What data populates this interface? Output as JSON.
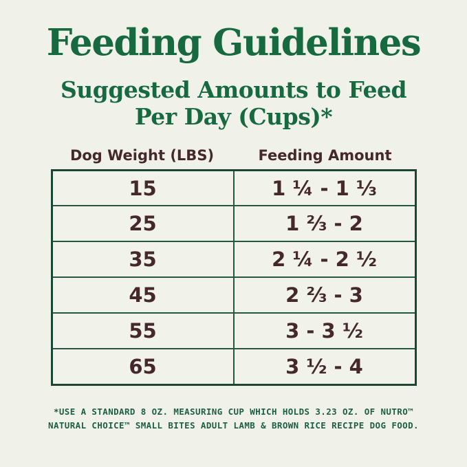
{
  "title": "Feeding Guidelines",
  "subtitle": {
    "line1": "Suggested Amounts to Feed",
    "line2": "Per Day (Cups)*"
  },
  "table": {
    "col_headers": [
      "Dog Weight (LBS)",
      "Feeding Amount"
    ],
    "rows": [
      {
        "weight": "15",
        "amount": "1 ¼ - 1 ⅓"
      },
      {
        "weight": "25",
        "amount": "1 ⅔ - 2"
      },
      {
        "weight": "35",
        "amount": "2 ¼ - 2 ½"
      },
      {
        "weight": "45",
        "amount": "2 ⅔ - 3"
      },
      {
        "weight": "55",
        "amount": "3 - 3 ½"
      },
      {
        "weight": "65",
        "amount": "3 ½ - 4"
      }
    ]
  },
  "footnote": {
    "line1": "*USE A STANDARD 8 OZ. MEASURING CUP WHICH HOLDS 3.23 OZ. OF NUTRO™",
    "line2": "NATURAL CHOICE™ SMALL BITES ADULT LAMB & BROWN RICE RECIPE DOG FOOD."
  },
  "colors": {
    "background": "#f0f2e9",
    "heading_green": "#17693f",
    "table_text_maroon": "#45282a",
    "table_border_green": "#1c4634",
    "footnote_green": "#1d5f41"
  }
}
